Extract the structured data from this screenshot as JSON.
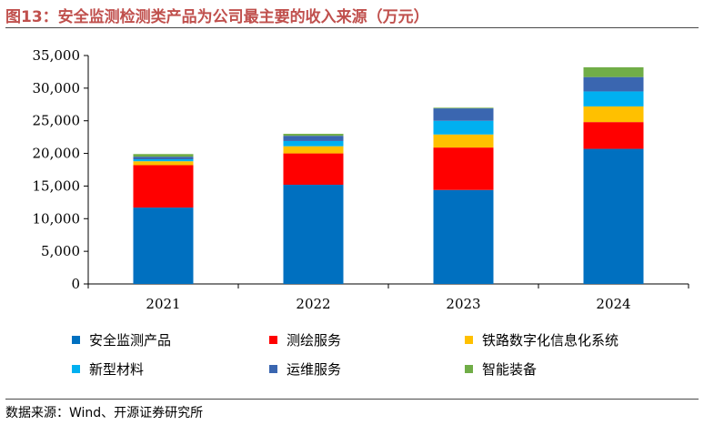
{
  "figure": {
    "title": "图13：安全监测检测类产品为公司最主要的收入来源（万元）",
    "source": "数据来源：Wind、开源证券研究所"
  },
  "chart_data": {
    "type": "bar",
    "stacked": true,
    "categories": [
      "2021",
      "2022",
      "2023",
      "2024"
    ],
    "series": [
      {
        "name": "安全监测产品",
        "color": "#0070c0",
        "values": [
          11700,
          15200,
          14400,
          20700
        ]
      },
      {
        "name": "测绘服务",
        "color": "#ff0000",
        "values": [
          6500,
          4800,
          6500,
          4100
        ]
      },
      {
        "name": "铁路数字化信息化系统",
        "color": "#ffc000",
        "values": [
          600,
          1100,
          2000,
          2400
        ]
      },
      {
        "name": "新型材料",
        "color": "#00b0f0",
        "values": [
          300,
          800,
          2100,
          2300
        ]
      },
      {
        "name": "运维服务",
        "color": "#3a66b0",
        "values": [
          400,
          800,
          1900,
          2200
        ]
      },
      {
        "name": "智能装备",
        "color": "#70ad47",
        "values": [
          400,
          300,
          100,
          1500
        ]
      }
    ],
    "yticks": [
      "0",
      "5,000",
      "10,000",
      "15,000",
      "20,000",
      "25,000",
      "30,000",
      "35,000"
    ],
    "ylim": [
      0,
      35000
    ],
    "xlabel": "",
    "ylabel": "",
    "grid": false,
    "legend_position": "bottom"
  }
}
